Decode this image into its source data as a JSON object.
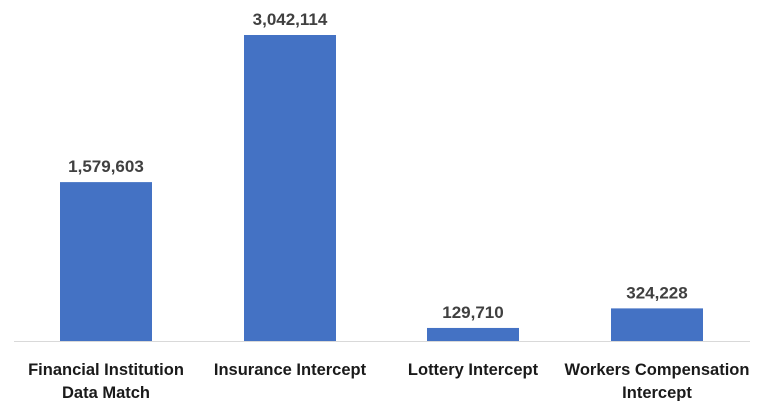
{
  "chart_data": {
    "type": "bar",
    "title": "",
    "xlabel": "",
    "ylabel": "",
    "categories": [
      [
        "Financial Institution",
        "Data Match"
      ],
      [
        "Insurance Intercept"
      ],
      [
        "Lottery Intercept"
      ],
      [
        "Workers Compensation",
        "Intercept"
      ]
    ],
    "values": [
      1579603,
      3042114,
      129710,
      324228
    ],
    "value_labels": [
      "1,579,603",
      "3,042,114",
      "129,710",
      "324,228"
    ],
    "ylim": [
      0,
      3042114
    ],
    "grid": false,
    "legend": "none",
    "bar_color": "#4472C4"
  }
}
